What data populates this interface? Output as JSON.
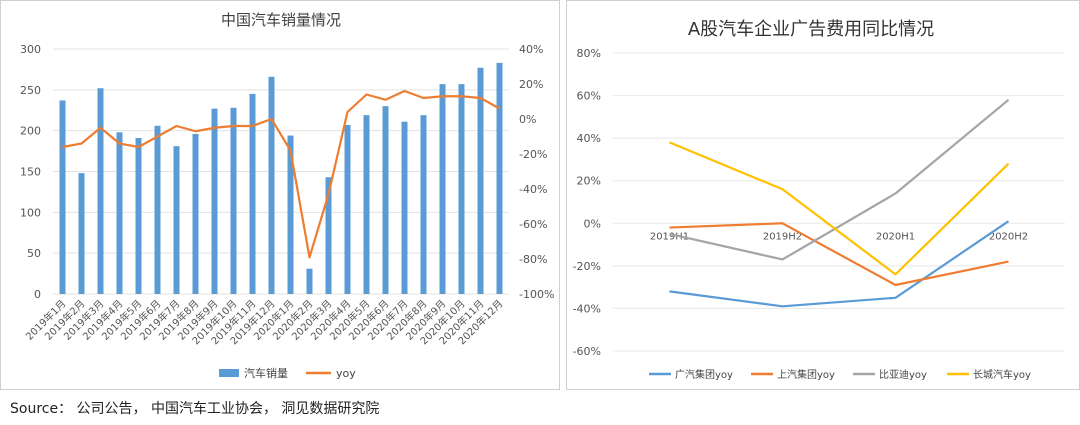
{
  "source": "Source： 公司公告， 中国汽车工业协会， 洞见数据研究院",
  "chart_data": [
    {
      "type": "bar",
      "title": "中国汽车销量情况",
      "categories": [
        "2019年1月",
        "2019年2月",
        "2019年3月",
        "2019年4月",
        "2019年5月",
        "2019年6月",
        "2019年7月",
        "2019年8月",
        "2019年9月",
        "2019年10月",
        "2019年11月",
        "2019年12月",
        "2020年1月",
        "2020年2月",
        "2020年3月",
        "2020年4月",
        "2020年5月",
        "2020年6月",
        "2020年7月",
        "2020年8月",
        "2020年9月",
        "2020年10月",
        "2020年11月",
        "2020年12月"
      ],
      "series": [
        {
          "name": "汽车销量",
          "type": "bar",
          "axis": "left",
          "color": "#5b9bd5",
          "values": [
            237,
            148,
            252,
            198,
            191,
            206,
            181,
            196,
            227,
            228,
            245,
            266,
            194,
            31,
            143,
            207,
            219,
            230,
            211,
            219,
            257,
            257,
            277,
            283
          ]
        },
        {
          "name": "yoy",
          "type": "line",
          "axis": "right",
          "color": "#ed7d31",
          "values": [
            -16,
            -14,
            -5,
            -14,
            -16,
            -10,
            -4,
            -7,
            -5,
            -4,
            -4,
            0,
            -18,
            -79,
            -43,
            4,
            14,
            11,
            16,
            12,
            13,
            13,
            12,
            6
          ]
        }
      ],
      "y_left": {
        "ticks": [
          0,
          50,
          100,
          150,
          200,
          250,
          300
        ],
        "ylim": [
          0,
          300
        ]
      },
      "y_right": {
        "ticks": [
          "-100%",
          "-80%",
          "-60%",
          "-40%",
          "-20%",
          "0%",
          "20%",
          "40%"
        ],
        "ylim": [
          -100,
          40
        ]
      },
      "legend": {
        "position": "bottom",
        "items": [
          "汽车销量",
          "yoy"
        ]
      },
      "grid": true
    },
    {
      "type": "line",
      "title": "A股汽车企业广告费用同比情况",
      "categories": [
        "2019H1",
        "2019H2",
        "2020H1",
        "2020H2"
      ],
      "series": [
        {
          "name": "广汽集团yoy",
          "color": "#5b9bd5",
          "values": [
            -32,
            -39,
            -35,
            1
          ]
        },
        {
          "name": "上汽集团yoy",
          "color": "#ed7d31",
          "values": [
            -2,
            0,
            -29,
            -18
          ]
        },
        {
          "name": "比亚迪yoy",
          "color": "#a5a5a5",
          "values": [
            -5,
            -17,
            14,
            58
          ]
        },
        {
          "name": "长城汽车yoy",
          "color": "#ffc000",
          "values": [
            38,
            16,
            -24,
            28
          ]
        }
      ],
      "y": {
        "ticks": [
          "-60%",
          "-40%",
          "-20%",
          "0%",
          "20%",
          "40%",
          "60%",
          "80%"
        ],
        "ylim": [
          -60,
          80
        ]
      },
      "legend": {
        "position": "bottom",
        "items": [
          "广汽集团yoy",
          "上汽集团yoy",
          "比亚迪yoy",
          "长城汽车yoy"
        ]
      },
      "grid": true
    }
  ]
}
